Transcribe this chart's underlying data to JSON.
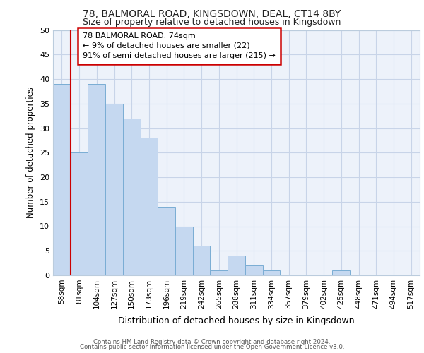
{
  "title1": "78, BALMORAL ROAD, KINGSDOWN, DEAL, CT14 8BY",
  "title2": "Size of property relative to detached houses in Kingsdown",
  "xlabel": "Distribution of detached houses by size in Kingsdown",
  "ylabel": "Number of detached properties",
  "bar_labels": [
    "58sqm",
    "81sqm",
    "104sqm",
    "127sqm",
    "150sqm",
    "173sqm",
    "196sqm",
    "219sqm",
    "242sqm",
    "265sqm",
    "288sqm",
    "311sqm",
    "334sqm",
    "357sqm",
    "379sqm",
    "402sqm",
    "425sqm",
    "448sqm",
    "471sqm",
    "494sqm",
    "517sqm"
  ],
  "bar_values": [
    39,
    25,
    39,
    35,
    32,
    28,
    14,
    10,
    6,
    1,
    4,
    2,
    1,
    0,
    0,
    0,
    1,
    0,
    0,
    0,
    0
  ],
  "bar_color": "#c5d8f0",
  "bar_edge_color": "#7aadd4",
  "vline_x_idx": 1,
  "annotation_line0": "78 BALMORAL ROAD: 74sqm",
  "annotation_line1": "← 9% of detached houses are smaller (22)",
  "annotation_line2": "91% of semi-detached houses are larger (215) →",
  "annotation_box_color": "#ffffff",
  "annotation_box_edge": "#cc0000",
  "vline_color": "#cc0000",
  "grid_color": "#c8d4e8",
  "bg_color": "#edf2fa",
  "footer1": "Contains HM Land Registry data © Crown copyright and database right 2024.",
  "footer2": "Contains public sector information licensed under the Open Government Licence v3.0.",
  "ylim": [
    0,
    50
  ],
  "yticks": [
    0,
    5,
    10,
    15,
    20,
    25,
    30,
    35,
    40,
    45,
    50
  ]
}
